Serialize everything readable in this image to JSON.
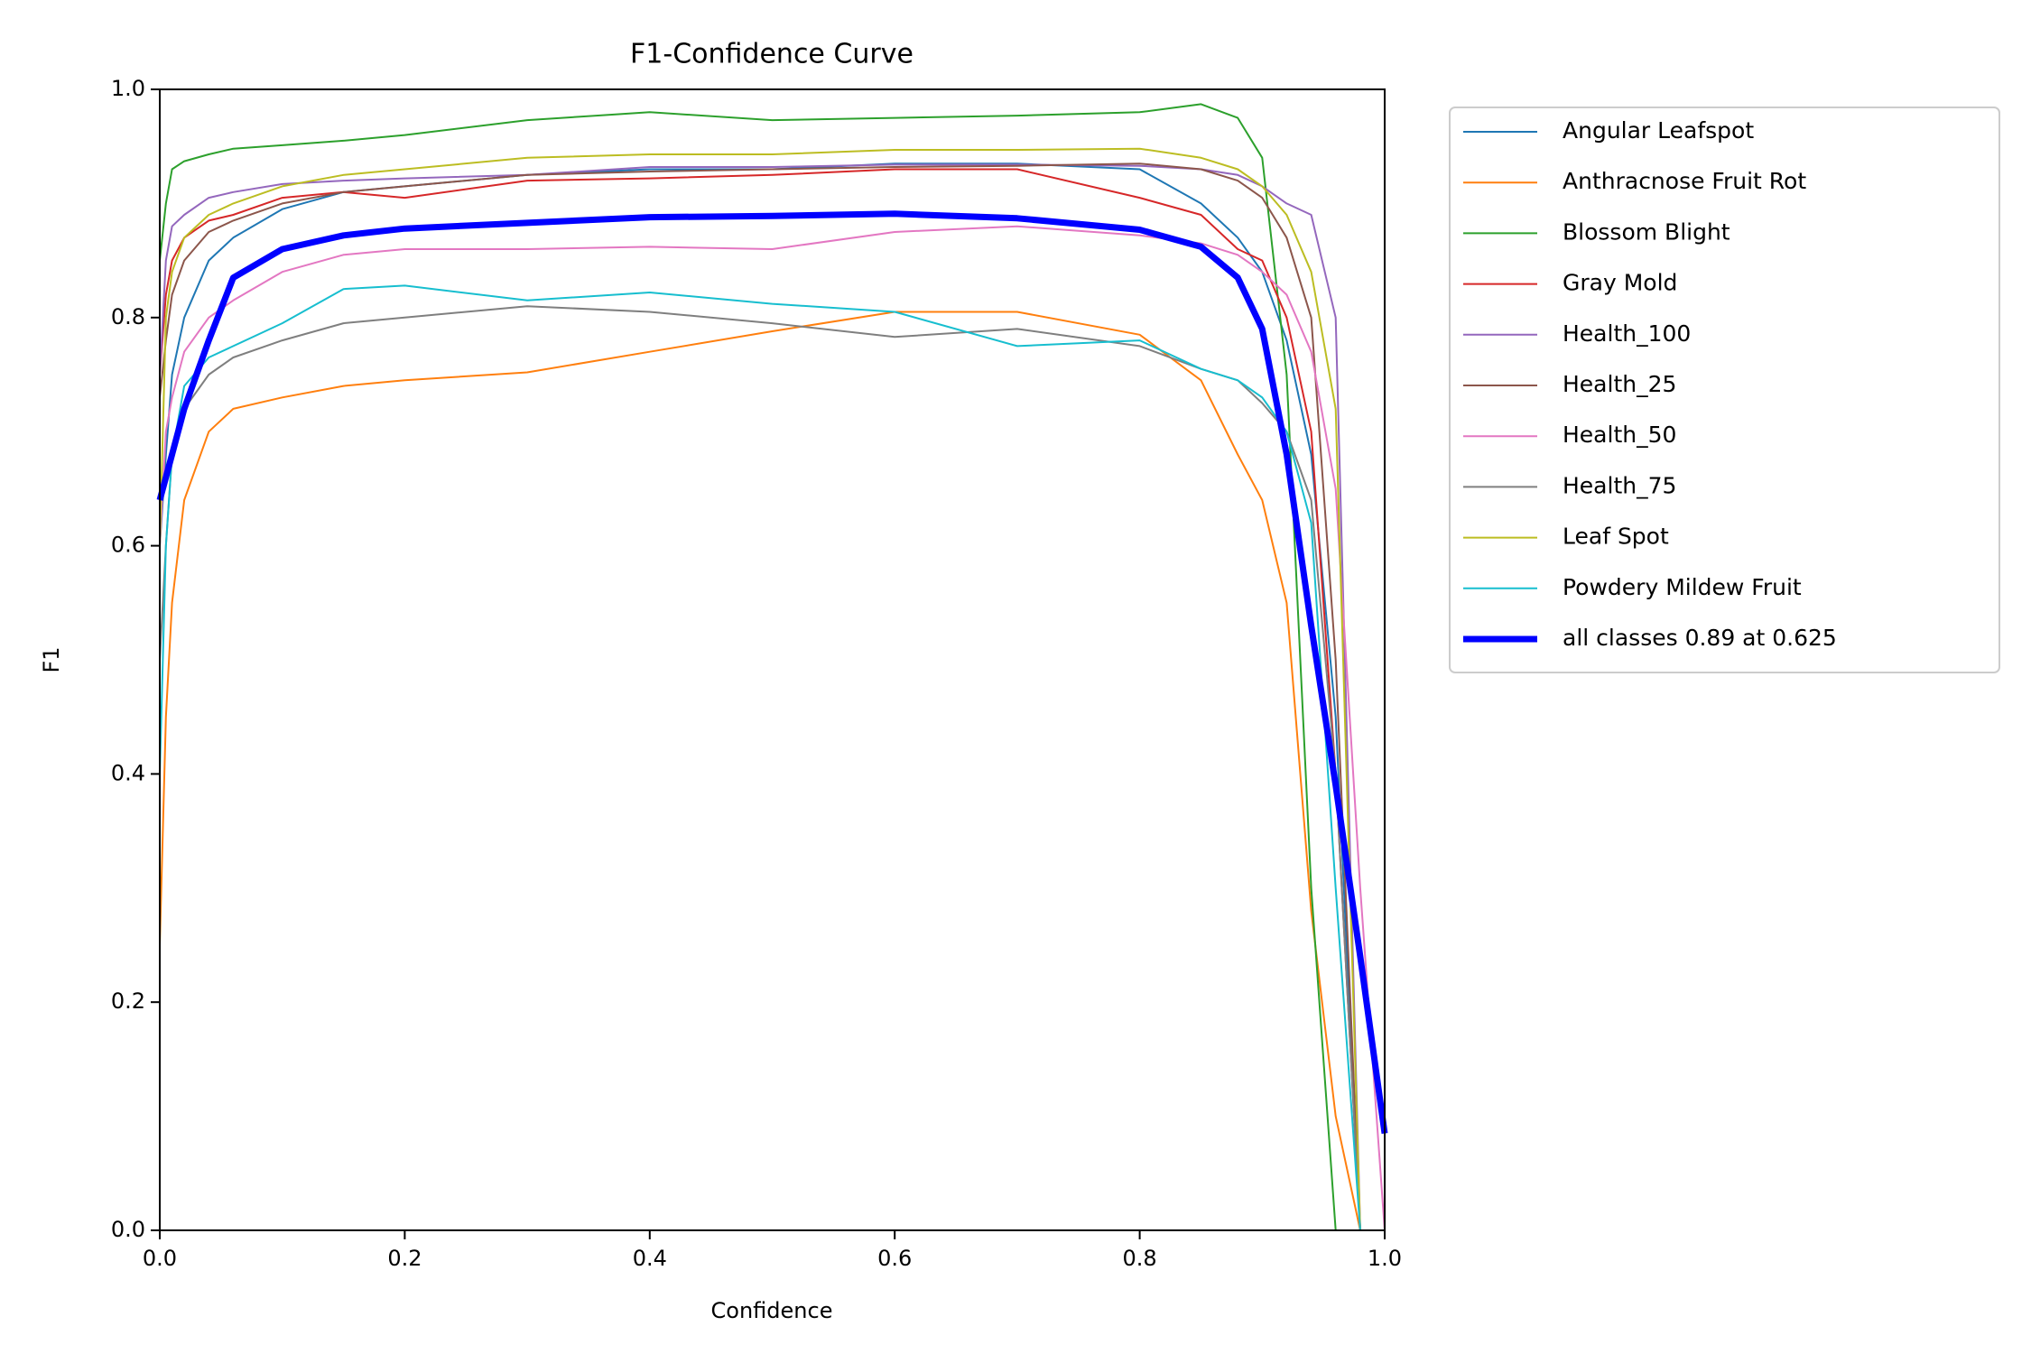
{
  "chart_data": {
    "type": "line",
    "title": "F1-Confidence Curve",
    "x_label": "Confidence",
    "y_label": "F1",
    "x": [
      0,
      0.005,
      0.01,
      0.02,
      0.04,
      0.06,
      0.1,
      0.15,
      0.2,
      0.3,
      0.4,
      0.5,
      0.6,
      0.7,
      0.8,
      0.85,
      0.88,
      0.9,
      0.92,
      0.94,
      0.96,
      0.98,
      1.0
    ],
    "series": [
      {
        "name": "Angular Leafspot",
        "color": "#1f77b4",
        "line_width": 2,
        "values": [
          0.6,
          0.68,
          0.75,
          0.8,
          0.85,
          0.87,
          0.895,
          0.91,
          0.915,
          0.925,
          0.93,
          0.93,
          0.935,
          0.935,
          0.93,
          0.9,
          0.87,
          0.84,
          0.78,
          0.68,
          0.45,
          0,
          0
        ]
      },
      {
        "name": "Anthracnose Fruit Rot",
        "color": "#ff7f0e",
        "line_width": 2,
        "values": [
          0.25,
          0.45,
          0.55,
          0.64,
          0.7,
          0.72,
          0.73,
          0.74,
          0.745,
          0.752,
          0.77,
          0.788,
          0.805,
          0.805,
          0.785,
          0.745,
          0.68,
          0.64,
          0.55,
          0.28,
          0.1,
          0,
          0
        ]
      },
      {
        "name": "Blossom Blight",
        "color": "#2ca02c",
        "line_width": 2,
        "values": [
          0.85,
          0.9,
          0.93,
          0.937,
          0.943,
          0.948,
          0.951,
          0.955,
          0.96,
          0.973,
          0.98,
          0.973,
          0.975,
          0.977,
          0.98,
          0.987,
          0.975,
          0.94,
          0.75,
          0.3,
          0,
          0,
          0
        ]
      },
      {
        "name": "Gray Mold",
        "color": "#d62728",
        "line_width": 2,
        "values": [
          0.75,
          0.82,
          0.85,
          0.87,
          0.885,
          0.89,
          0.905,
          0.91,
          0.905,
          0.92,
          0.922,
          0.925,
          0.93,
          0.93,
          0.905,
          0.89,
          0.86,
          0.85,
          0.8,
          0.7,
          0.4,
          0,
          0
        ]
      },
      {
        "name": "Health_100",
        "color": "#9467bd",
        "line_width": 2,
        "values": [
          0.75,
          0.85,
          0.88,
          0.89,
          0.905,
          0.91,
          0.917,
          0.92,
          0.922,
          0.925,
          0.932,
          0.932,
          0.934,
          0.934,
          0.933,
          0.93,
          0.925,
          0.915,
          0.9,
          0.89,
          0.8,
          0,
          0
        ]
      },
      {
        "name": "Health_25",
        "color": "#8c564b",
        "line_width": 2,
        "values": [
          0.73,
          0.78,
          0.82,
          0.85,
          0.875,
          0.885,
          0.9,
          0.91,
          0.915,
          0.925,
          0.928,
          0.93,
          0.932,
          0.933,
          0.935,
          0.93,
          0.92,
          0.905,
          0.87,
          0.8,
          0.5,
          0,
          0
        ]
      },
      {
        "name": "Health_50",
        "color": "#e377c2",
        "line_width": 2,
        "values": [
          0.6,
          0.7,
          0.73,
          0.77,
          0.8,
          0.815,
          0.84,
          0.855,
          0.86,
          0.86,
          0.862,
          0.86,
          0.875,
          0.88,
          0.872,
          0.865,
          0.855,
          0.84,
          0.82,
          0.77,
          0.65,
          0.3,
          0
        ]
      },
      {
        "name": "Health_75",
        "color": "#7f7f7f",
        "line_width": 2,
        "values": [
          0.5,
          0.6,
          0.68,
          0.72,
          0.75,
          0.765,
          0.78,
          0.795,
          0.8,
          0.81,
          0.805,
          0.795,
          0.783,
          0.79,
          0.775,
          0.755,
          0.745,
          0.725,
          0.7,
          0.64,
          0.4,
          0,
          0
        ]
      },
      {
        "name": "Leaf Spot",
        "color": "#bcbd22",
        "line_width": 2,
        "values": [
          0.6,
          0.8,
          0.84,
          0.87,
          0.89,
          0.9,
          0.915,
          0.925,
          0.93,
          0.94,
          0.943,
          0.943,
          0.947,
          0.947,
          0.948,
          0.94,
          0.93,
          0.915,
          0.89,
          0.84,
          0.72,
          0,
          0
        ]
      },
      {
        "name": "Powdery Mildew Fruit",
        "color": "#17becf",
        "line_width": 2,
        "values": [
          0.4,
          0.6,
          0.68,
          0.74,
          0.765,
          0.775,
          0.795,
          0.825,
          0.828,
          0.815,
          0.822,
          0.812,
          0.805,
          0.775,
          0.78,
          0.755,
          0.745,
          0.73,
          0.7,
          0.62,
          0.3,
          0,
          0
        ]
      },
      {
        "name": "all classes 0.89 at 0.625",
        "color": "#0000ff",
        "line_width": 7,
        "values": [
          0.64,
          0.66,
          0.68,
          0.72,
          0.78,
          0.835,
          0.86,
          0.872,
          0.878,
          0.883,
          0.888,
          0.889,
          0.891,
          0.887,
          0.877,
          0.862,
          0.835,
          0.79,
          0.68,
          0.53,
          0.39,
          0.24,
          0.085
        ]
      }
    ],
    "xlim": [
      0,
      1
    ],
    "ylim": [
      0,
      1
    ],
    "xticks": [
      {
        "value": 0,
        "label": "0.0"
      },
      0.2,
      0.4,
      0.6,
      0.8,
      {
        "value": 1,
        "label": "1.0"
      }
    ],
    "yticks": [
      {
        "value": 0,
        "label": "0.0"
      },
      0.2,
      0.4,
      0.6,
      0.8,
      {
        "value": 1,
        "label": "1.0"
      }
    ],
    "legend": "outside-upper-right"
  }
}
